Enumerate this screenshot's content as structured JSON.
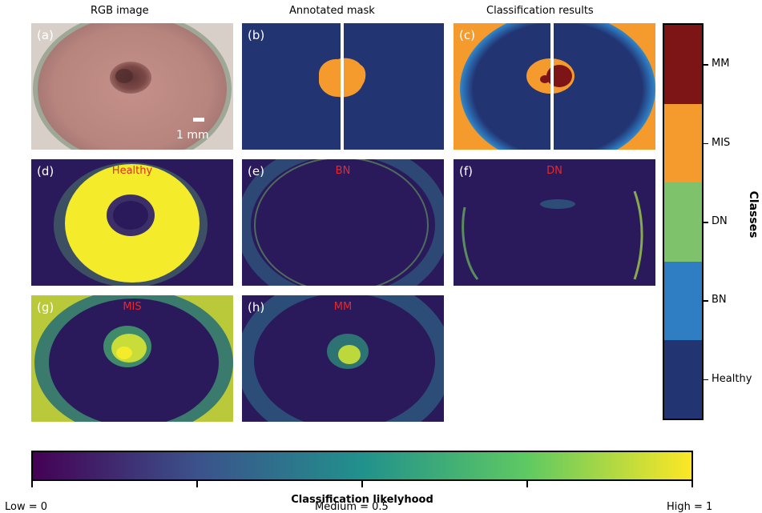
{
  "column_titles": [
    "RGB image",
    "Annotated mask",
    "Classification results"
  ],
  "panels": {
    "a": {
      "label": "(a)",
      "title": "",
      "scale": "1 mm"
    },
    "b": {
      "label": "(b)",
      "title": ""
    },
    "c": {
      "label": "(c)",
      "title": ""
    },
    "d": {
      "label": "(d)",
      "title": "Healthy"
    },
    "e": {
      "label": "(e)",
      "title": "BN"
    },
    "f": {
      "label": "(f)",
      "title": "DN"
    },
    "g": {
      "label": "(g)",
      "title": "MIS"
    },
    "h": {
      "label": "(h)",
      "title": "MM"
    }
  },
  "chart_data": [
    {
      "type": "heatmap",
      "role": "class colorbar",
      "title": "Classes",
      "categories": [
        "Healthy",
        "BN",
        "DN",
        "MIS",
        "MM"
      ],
      "colors": [
        "#223472",
        "#2f7dc3",
        "#7ec36b",
        "#f59a2d",
        "#7d1416"
      ]
    },
    {
      "type": "heatmap",
      "role": "likelihood colorbar",
      "title": "Classification likelyhood",
      "range": [
        0,
        1
      ],
      "tick_values": [
        0,
        0.25,
        0.5,
        0.75,
        1
      ],
      "tick_labels": {
        "low": "Low = 0",
        "mid": "Medium = 0.5",
        "high": "High = 1"
      },
      "colormap": "viridis",
      "colors": [
        "#440154",
        "#3b528b",
        "#21918c",
        "#5ec962",
        "#fde725"
      ]
    }
  ],
  "colors": {
    "background_dark": "#2a1a5c",
    "highlight": "#f4ec2a",
    "annotation_red": "#e8282a",
    "mask_background": "#223472",
    "mask_lesion": "#f59a2d"
  }
}
